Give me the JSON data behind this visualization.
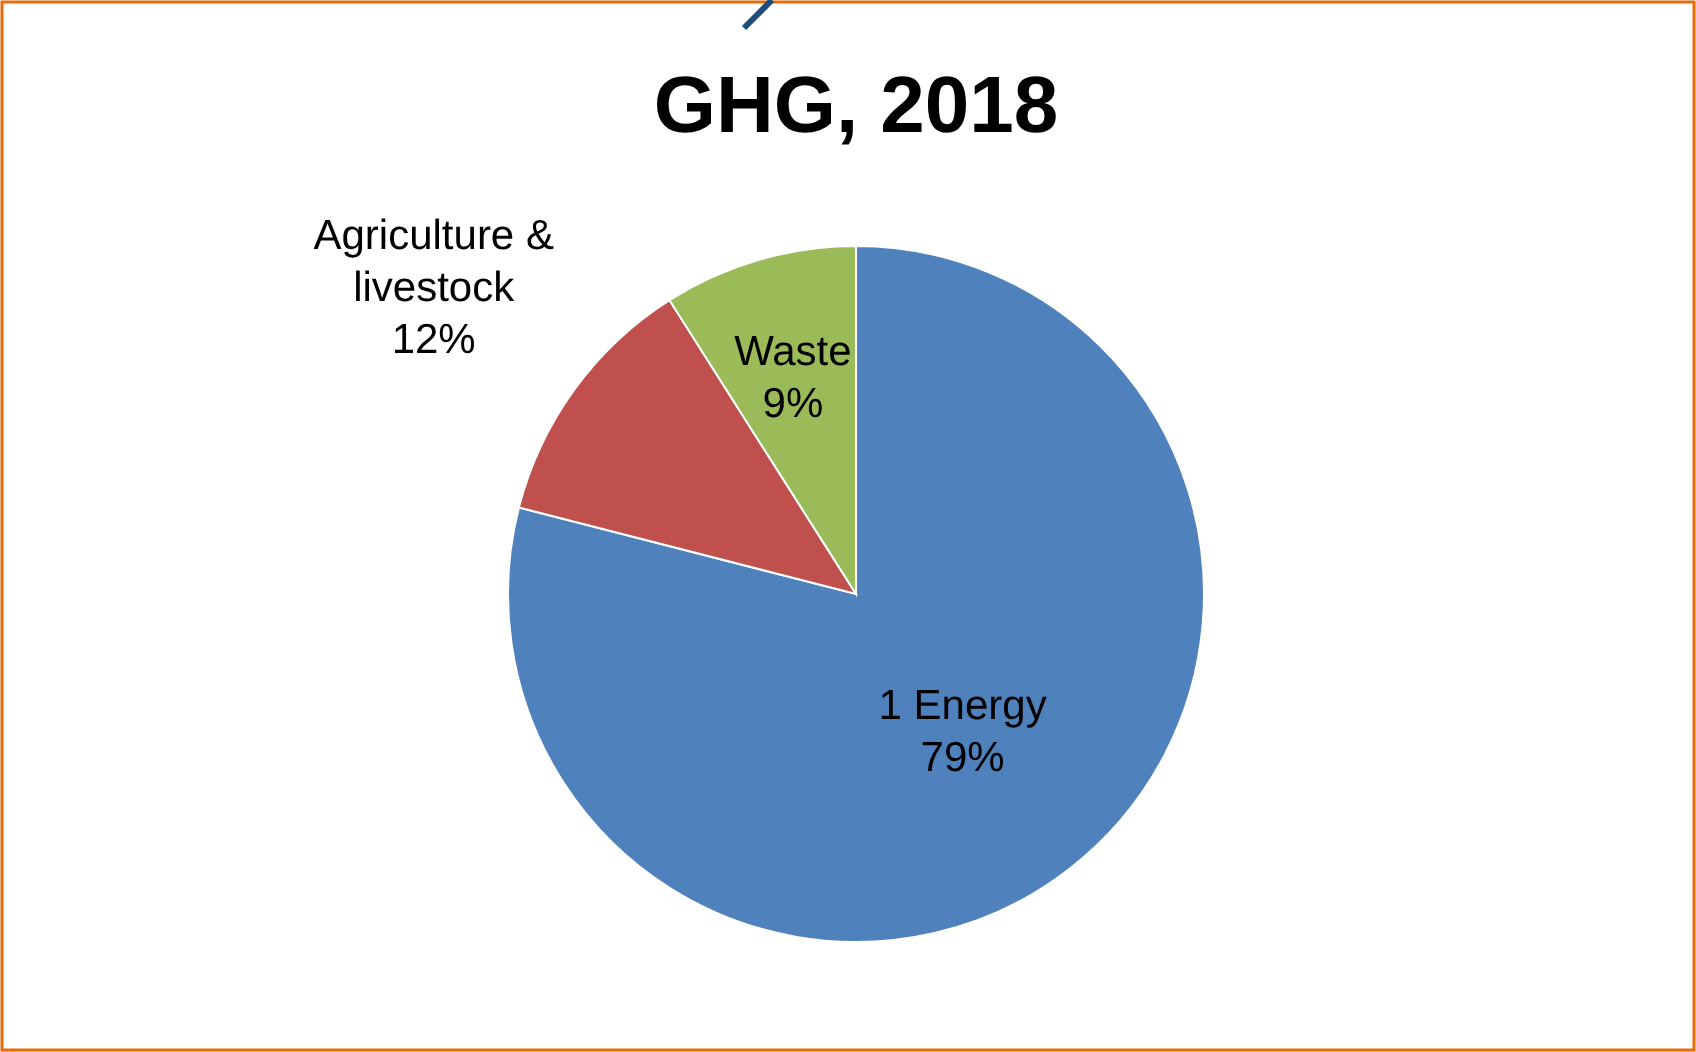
{
  "chart_data": {
    "type": "pie",
    "title": "GHG, 2018",
    "categories": [
      "1 Energy",
      "Agriculture & livestock",
      "Waste"
    ],
    "values": [
      79,
      12,
      9
    ],
    "colors": [
      "#4f81bd",
      "#c0504d",
      "#9bbb59"
    ],
    "value_labels": [
      "79%",
      "12%",
      "9%"
    ],
    "legend": false
  }
}
